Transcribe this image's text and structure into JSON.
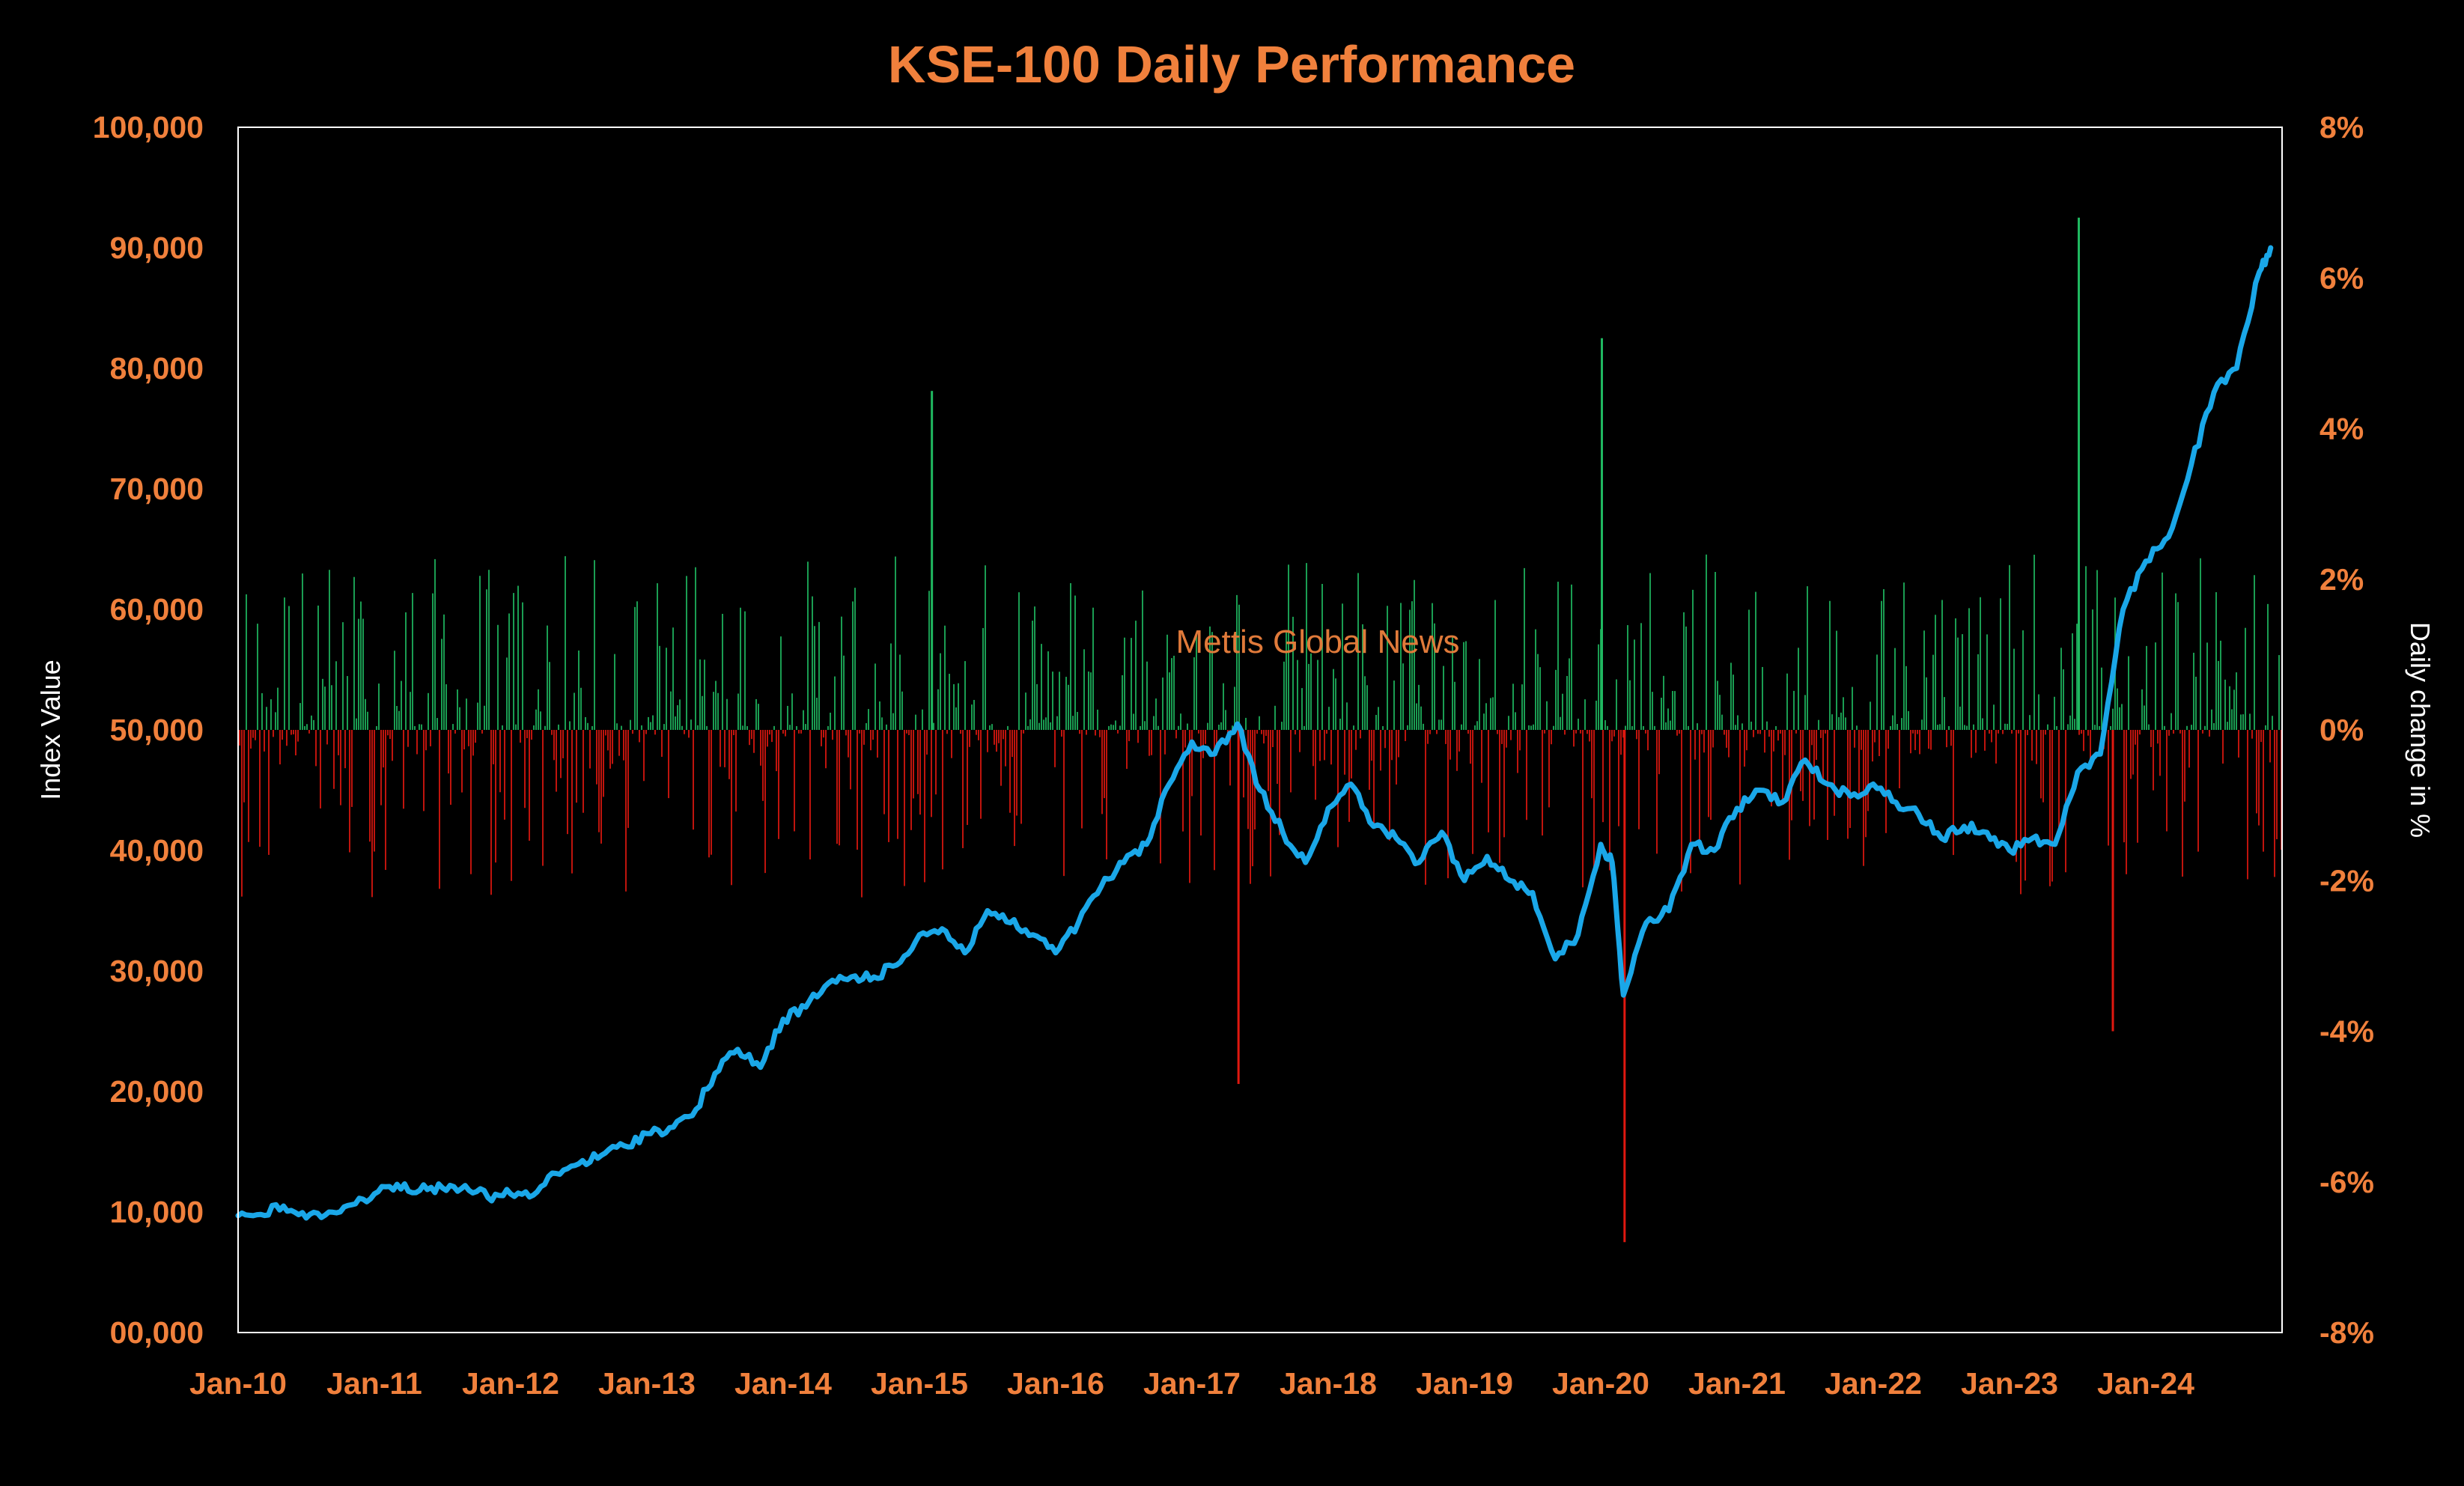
{
  "chart_data": {
    "type": "line",
    "title": "KSE-100 Daily Performance",
    "watermark": "Mettis Global News",
    "colors": {
      "background": "#000000",
      "text_accent": "#F0803C",
      "index_line": "#1AA7E8",
      "positive_bar": "#1FB860",
      "negative_bar": "#E0180F",
      "axis_label_text": "#FFFFFF",
      "plot_border": "#FFFFFF"
    },
    "grid": false,
    "y_left": {
      "label": "Index Value",
      "range": [
        0,
        100000
      ],
      "ticks": [
        "00,000",
        "10,000",
        "20,000",
        "30,000",
        "40,000",
        "50,000",
        "60,000",
        "70,000",
        "80,000",
        "90,000",
        "100,000"
      ],
      "tick_values": [
        0,
        10000,
        20000,
        30000,
        40000,
        50000,
        60000,
        70000,
        80000,
        90000,
        100000
      ]
    },
    "y_right": {
      "label": "Daily change in %",
      "range": [
        -8,
        8
      ],
      "ticks": [
        "-8%",
        "-6%",
        "-4%",
        "-2%",
        "0%",
        "2%",
        "4%",
        "6%",
        "8%"
      ],
      "tick_values": [
        -8,
        -6,
        -4,
        -2,
        0,
        2,
        4,
        6,
        8
      ]
    },
    "x_axis": {
      "range": [
        "2010-01",
        "2024-12"
      ],
      "ticks": [
        "Jan-10",
        "Jan-11",
        "Jan-12",
        "Jan-13",
        "Jan-14",
        "Jan-15",
        "Jan-16",
        "Jan-17",
        "Jan-18",
        "Jan-19",
        "Jan-20",
        "Jan-21",
        "Jan-22",
        "Jan-23",
        "Jan-24"
      ],
      "tick_dates": [
        "2010-01",
        "2011-01",
        "2012-01",
        "2013-01",
        "2014-01",
        "2015-01",
        "2016-01",
        "2017-01",
        "2018-01",
        "2019-01",
        "2020-01",
        "2021-01",
        "2022-01",
        "2023-01",
        "2024-01"
      ]
    },
    "series": [
      {
        "name": "Index Value",
        "axis": "left",
        "kind": "line",
        "x": [
          "2010-01",
          "2010-03",
          "2010-05",
          "2010-07",
          "2010-09",
          "2010-11",
          "2011-01",
          "2011-03",
          "2011-05",
          "2011-07",
          "2011-09",
          "2011-11",
          "2012-01",
          "2012-03",
          "2012-05",
          "2012-07",
          "2012-09",
          "2012-11",
          "2013-01",
          "2013-03",
          "2013-05",
          "2013-07",
          "2013-09",
          "2013-11",
          "2014-01",
          "2014-03",
          "2014-05",
          "2014-07",
          "2014-09",
          "2014-11",
          "2015-01",
          "2015-03",
          "2015-05",
          "2015-07",
          "2015-09",
          "2015-11",
          "2016-01",
          "2016-03",
          "2016-05",
          "2016-07",
          "2016-09",
          "2016-11",
          "2017-01",
          "2017-03",
          "2017-05",
          "2017-07",
          "2017-09",
          "2017-11",
          "2018-01",
          "2018-03",
          "2018-05",
          "2018-07",
          "2018-09",
          "2018-11",
          "2019-01",
          "2019-03",
          "2019-05",
          "2019-07",
          "2019-09",
          "2019-11",
          "2020-01",
          "2020-02",
          "2020-03",
          "2020-05",
          "2020-07",
          "2020-09",
          "2020-11",
          "2021-01",
          "2021-03",
          "2021-05",
          "2021-07",
          "2021-09",
          "2021-11",
          "2022-01",
          "2022-03",
          "2022-05",
          "2022-07",
          "2022-09",
          "2022-11",
          "2023-01",
          "2023-03",
          "2023-05",
          "2023-07",
          "2023-09",
          "2023-11",
          "2024-01",
          "2024-03",
          "2024-05",
          "2024-07",
          "2024-09",
          "2024-11",
          "2024-12"
        ],
        "y": [
          9700,
          9800,
          10500,
          9500,
          10000,
          10600,
          11500,
          12300,
          11800,
          12000,
          12200,
          11200,
          11500,
          11400,
          13200,
          14000,
          14700,
          15500,
          16500,
          17000,
          18000,
          21500,
          23500,
          22000,
          26000,
          27000,
          29000,
          29500,
          29500,
          30500,
          33000,
          33500,
          31500,
          35000,
          34000,
          33000,
          31500,
          34000,
          37000,
          39000,
          40500,
          45500,
          49000,
          48000,
          50500,
          45000,
          41500,
          39000,
          43500,
          45500,
          42000,
          41000,
          39000,
          41500,
          37500,
          39500,
          37500,
          36500,
          31000,
          33000,
          40500,
          39000,
          28000,
          34000,
          35000,
          40500,
          40000,
          43500,
          45000,
          44000,
          47500,
          45500,
          44500,
          45500,
          44000,
          43000,
          41000,
          42000,
          41500,
          40000,
          41000,
          40500,
          46500,
          48000,
          60000,
          64000,
          66000,
          72000,
          78000,
          80000,
          88000,
          90000
        ]
      },
      {
        "name": "Daily change",
        "axis": "right",
        "kind": "bars",
        "note_points": [
          {
            "x": "2015-02",
            "y": 4.5
          },
          {
            "x": "2017-05",
            "y": -4.7
          },
          {
            "x": "2020-01",
            "y": 5.2
          },
          {
            "x": "2020-03",
            "y": -6.8
          },
          {
            "x": "2023-07",
            "y": 6.8
          },
          {
            "x": "2023-10",
            "y": -4.0
          }
        ]
      }
    ]
  }
}
